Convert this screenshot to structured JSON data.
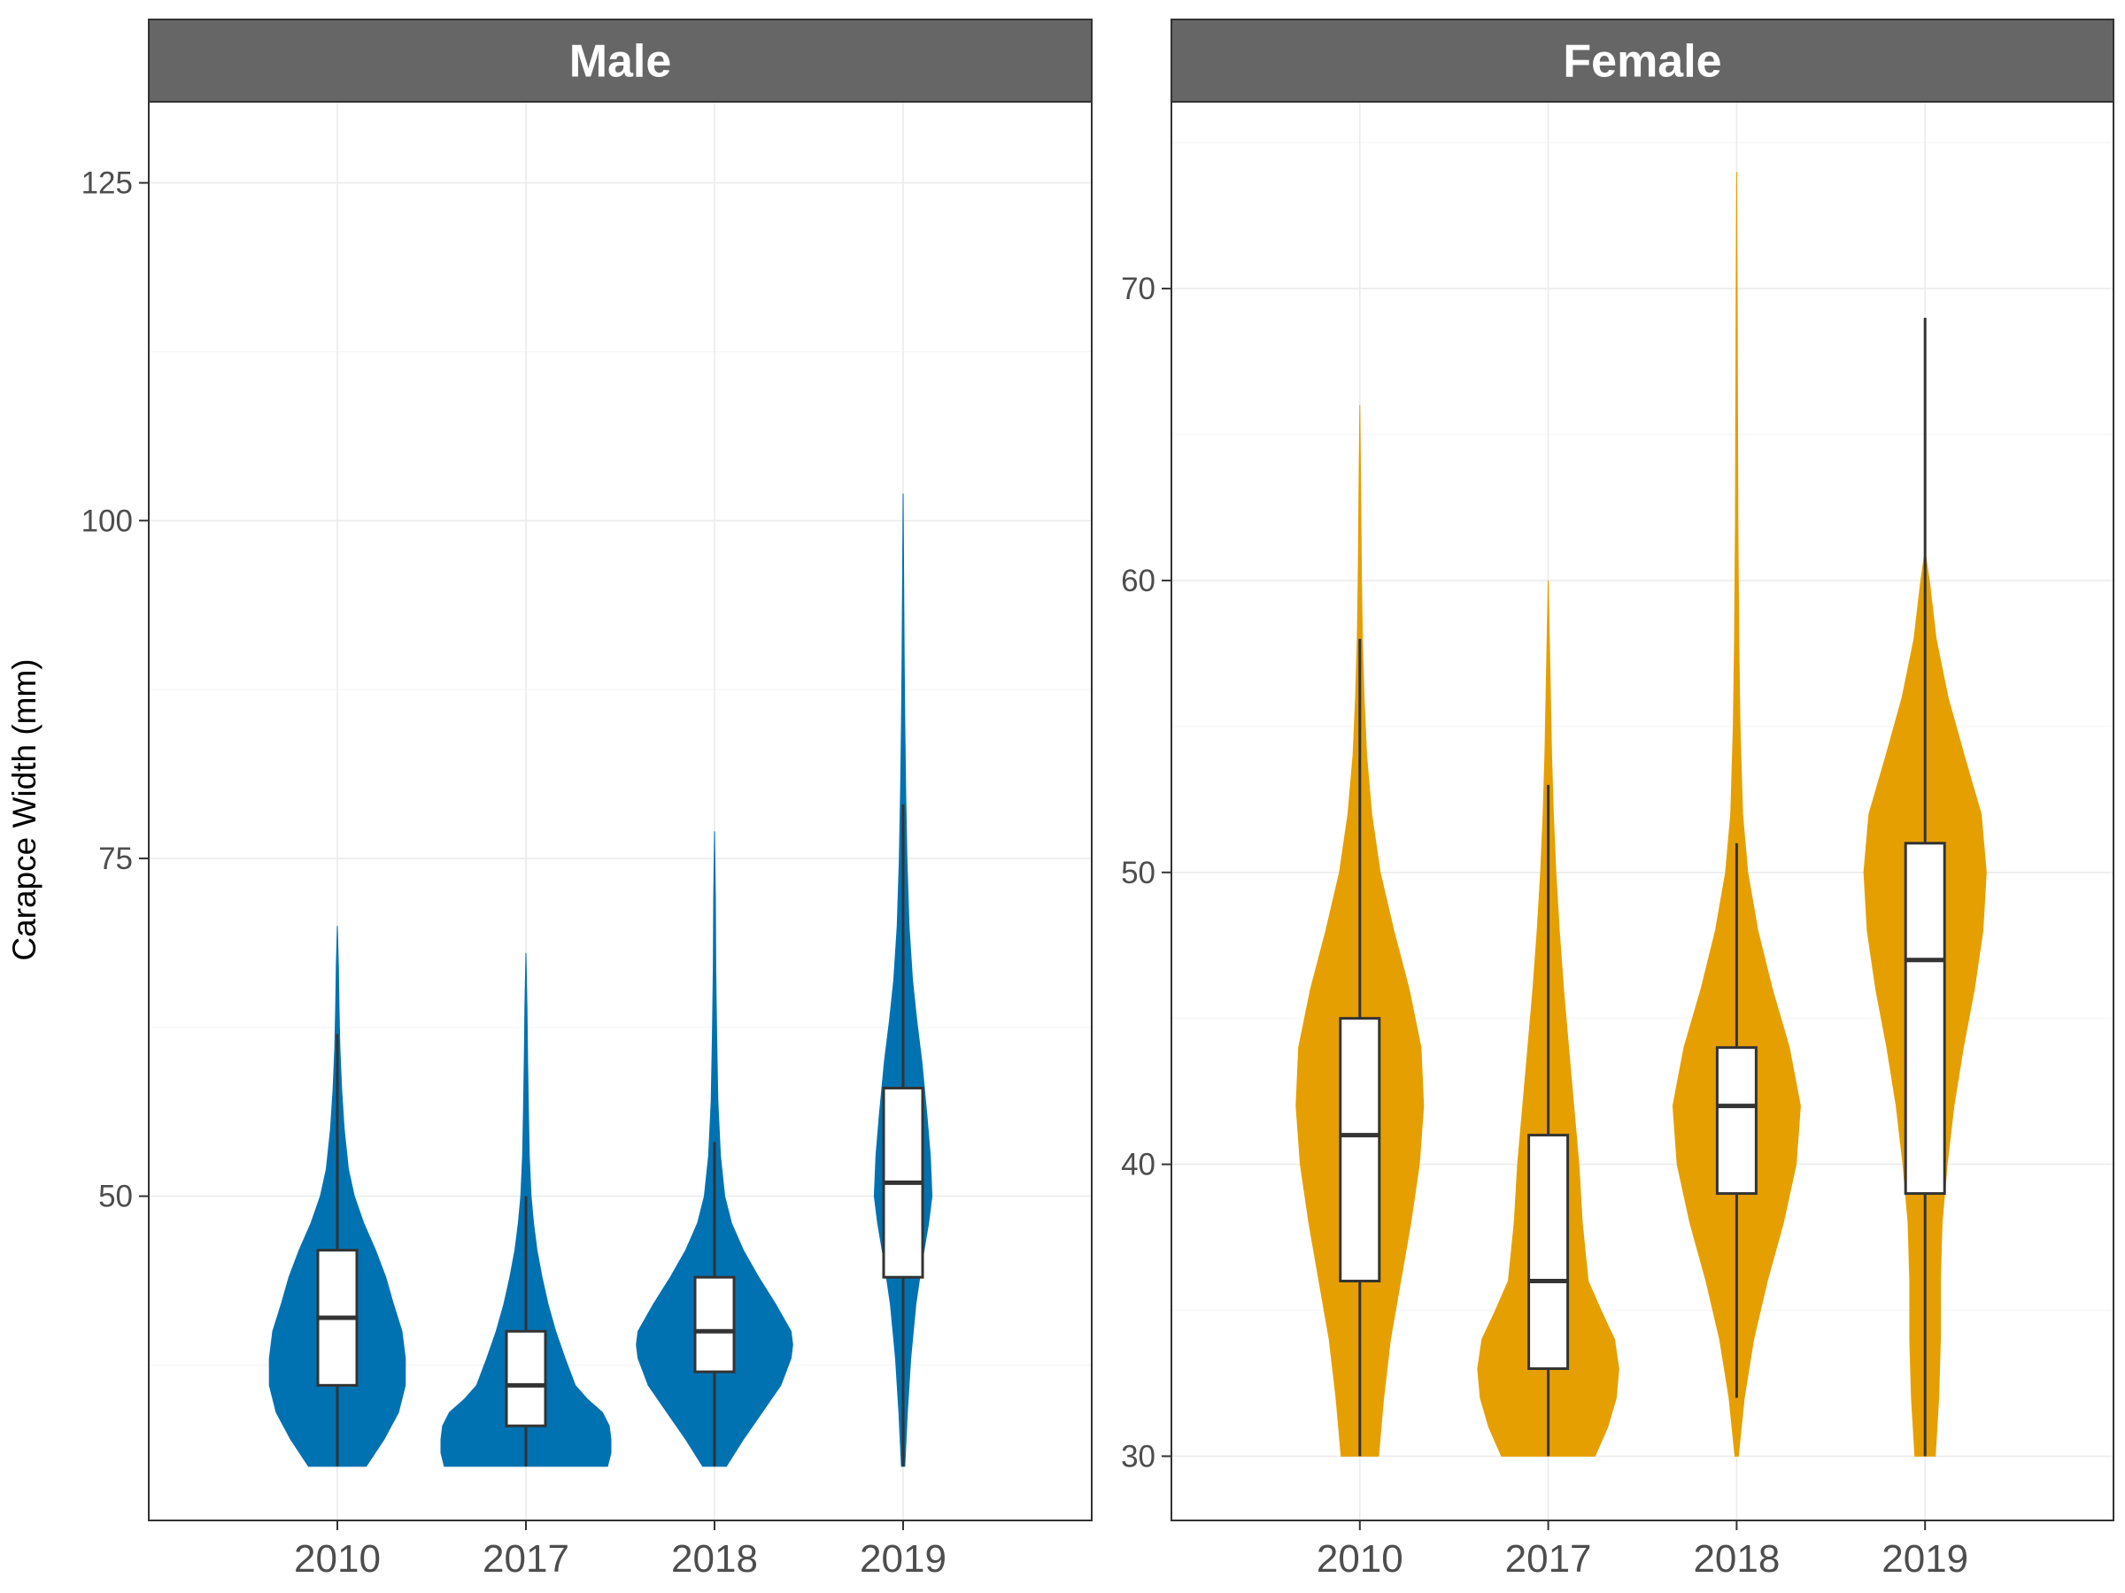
{
  "chart_data": {
    "type": "violin",
    "ylabel": "Carapce Width (mm)",
    "categories": [
      "2010",
      "2017",
      "2018",
      "2019"
    ],
    "grid": true,
    "panels": [
      {
        "name": "Male",
        "color": "#0072B2",
        "ylim": [
          26,
          131
        ],
        "yticks": [
          50,
          75,
          100,
          125
        ],
        "groups": [
          {
            "x": "2010",
            "box": {
              "min": 30,
              "q1": 36,
              "median": 41,
              "q3": 46,
              "max": 62
            },
            "violin_range": [
              30,
              70
            ],
            "density": [
              [
                30,
                0.34
              ],
              [
                32,
                0.55
              ],
              [
                34,
                0.72
              ],
              [
                36,
                0.8
              ],
              [
                38,
                0.8
              ],
              [
                40,
                0.76
              ],
              [
                42,
                0.66
              ],
              [
                44,
                0.57
              ],
              [
                46,
                0.45
              ],
              [
                48,
                0.31
              ],
              [
                50,
                0.2
              ],
              [
                52,
                0.13
              ],
              [
                55,
                0.08
              ],
              [
                58,
                0.05
              ],
              [
                61,
                0.03
              ],
              [
                64,
                0.02
              ],
              [
                67,
                0.012
              ],
              [
                70,
                0
              ]
            ]
          },
          {
            "x": "2017",
            "box": {
              "min": 30,
              "q1": 33,
              "median": 36,
              "q3": 40,
              "max": 50
            },
            "violin_range": [
              30,
              68
            ],
            "density": [
              [
                30,
                0.96
              ],
              [
                31,
                1.0
              ],
              [
                32,
                1.0
              ],
              [
                33,
                0.98
              ],
              [
                34,
                0.9
              ],
              [
                35,
                0.72
              ],
              [
                36,
                0.58
              ],
              [
                38,
                0.46
              ],
              [
                40,
                0.35
              ],
              [
                42,
                0.26
              ],
              [
                44,
                0.19
              ],
              [
                46,
                0.13
              ],
              [
                48,
                0.09
              ],
              [
                50,
                0.06
              ],
              [
                53,
                0.04
              ],
              [
                56,
                0.03
              ],
              [
                60,
                0.02
              ],
              [
                64,
                0.012
              ],
              [
                68,
                0
              ]
            ]
          },
          {
            "x": "2018",
            "box": {
              "min": 30,
              "q1": 37,
              "median": 40,
              "q3": 44,
              "max": 54
            },
            "violin_range": [
              30,
              77
            ],
            "density": [
              [
                30,
                0.14
              ],
              [
                32,
                0.34
              ],
              [
                34,
                0.56
              ],
              [
                36,
                0.78
              ],
              [
                38,
                0.9
              ],
              [
                39,
                0.92
              ],
              [
                40,
                0.9
              ],
              [
                42,
                0.72
              ],
              [
                44,
                0.52
              ],
              [
                46,
                0.34
              ],
              [
                48,
                0.2
              ],
              [
                50,
                0.12
              ],
              [
                53,
                0.07
              ],
              [
                57,
                0.04
              ],
              [
                62,
                0.025
              ],
              [
                67,
                0.015
              ],
              [
                72,
                0.01
              ],
              [
                77,
                0
              ]
            ]
          },
          {
            "x": "2019",
            "box": {
              "min": 30,
              "q1": 44,
              "median": 51,
              "q3": 58,
              "max": 79
            },
            "violin_range": [
              30,
              102
            ],
            "density": [
              [
                30,
                0.02
              ],
              [
                34,
                0.05
              ],
              [
                38,
                0.09
              ],
              [
                42,
                0.15
              ],
              [
                45,
                0.22
              ],
              [
                48,
                0.3
              ],
              [
                50,
                0.34
              ],
              [
                53,
                0.32
              ],
              [
                56,
                0.28
              ],
              [
                60,
                0.22
              ],
              [
                63,
                0.16
              ],
              [
                66,
                0.11
              ],
              [
                70,
                0.07
              ],
              [
                75,
                0.045
              ],
              [
                80,
                0.03
              ],
              [
                85,
                0.02
              ],
              [
                90,
                0.012
              ],
              [
                95,
                0.007
              ],
              [
                102,
                0
              ]
            ]
          }
        ]
      },
      {
        "name": "Female",
        "color": "#E69F00",
        "ylim": [
          27.8,
          76.4
        ],
        "yticks": [
          30,
          40,
          50,
          60,
          70
        ],
        "groups": [
          {
            "x": "2010",
            "box": {
              "min": 30,
              "q1": 36,
              "median": 41,
              "q3": 45,
              "max": 58
            },
            "violin_range": [
              30,
              66
            ],
            "density": [
              [
                30,
                0.22
              ],
              [
                32,
                0.28
              ],
              [
                34,
                0.36
              ],
              [
                36,
                0.48
              ],
              [
                38,
                0.6
              ],
              [
                40,
                0.7
              ],
              [
                42,
                0.75
              ],
              [
                44,
                0.72
              ],
              [
                46,
                0.58
              ],
              [
                48,
                0.4
              ],
              [
                50,
                0.24
              ],
              [
                52,
                0.14
              ],
              [
                54,
                0.08
              ],
              [
                56,
                0.05
              ],
              [
                58,
                0.03
              ],
              [
                60,
                0.02
              ],
              [
                63,
                0.01
              ],
              [
                66,
                0
              ]
            ]
          },
          {
            "x": "2017",
            "box": {
              "min": 30,
              "q1": 33,
              "median": 36,
              "q3": 41,
              "max": 53
            },
            "violin_range": [
              30,
              60
            ],
            "density": [
              [
                30,
                0.55
              ],
              [
                31,
                0.7
              ],
              [
                32,
                0.8
              ],
              [
                33,
                0.83
              ],
              [
                34,
                0.78
              ],
              [
                35,
                0.62
              ],
              [
                36,
                0.47
              ],
              [
                38,
                0.4
              ],
              [
                40,
                0.36
              ],
              [
                42,
                0.3
              ],
              [
                44,
                0.24
              ],
              [
                46,
                0.18
              ],
              [
                48,
                0.13
              ],
              [
                50,
                0.09
              ],
              [
                52,
                0.06
              ],
              [
                54,
                0.04
              ],
              [
                57,
                0.02
              ],
              [
                60,
                0
              ]
            ]
          },
          {
            "x": "2018",
            "box": {
              "min": 32,
              "q1": 39,
              "median": 42,
              "q3": 44,
              "max": 51
            },
            "violin_range": [
              30,
              74
            ],
            "density": [
              [
                30,
                0.02
              ],
              [
                32,
                0.09
              ],
              [
                34,
                0.2
              ],
              [
                36,
                0.36
              ],
              [
                38,
                0.55
              ],
              [
                40,
                0.7
              ],
              [
                42,
                0.75
              ],
              [
                44,
                0.62
              ],
              [
                46,
                0.42
              ],
              [
                48,
                0.25
              ],
              [
                50,
                0.13
              ],
              [
                52,
                0.07
              ],
              [
                55,
                0.04
              ],
              [
                58,
                0.025
              ],
              [
                62,
                0.015
              ],
              [
                66,
                0.01
              ],
              [
                70,
                0.006
              ],
              [
                74,
                0
              ]
            ]
          },
          {
            "x": "2019",
            "box": {
              "min": 30,
              "q1": 39,
              "median": 47,
              "q3": 51,
              "max": 69
            },
            "violin_range": [
              30,
              61
            ],
            "density": [
              [
                30,
                0.12
              ],
              [
                32,
                0.16
              ],
              [
                34,
                0.18
              ],
              [
                36,
                0.18
              ],
              [
                38,
                0.2
              ],
              [
                40,
                0.26
              ],
              [
                42,
                0.34
              ],
              [
                44,
                0.45
              ],
              [
                46,
                0.58
              ],
              [
                48,
                0.68
              ],
              [
                50,
                0.72
              ],
              [
                52,
                0.66
              ],
              [
                54,
                0.46
              ],
              [
                56,
                0.27
              ],
              [
                58,
                0.13
              ],
              [
                60,
                0.05
              ],
              [
                61,
                0
              ]
            ]
          }
        ]
      }
    ]
  }
}
